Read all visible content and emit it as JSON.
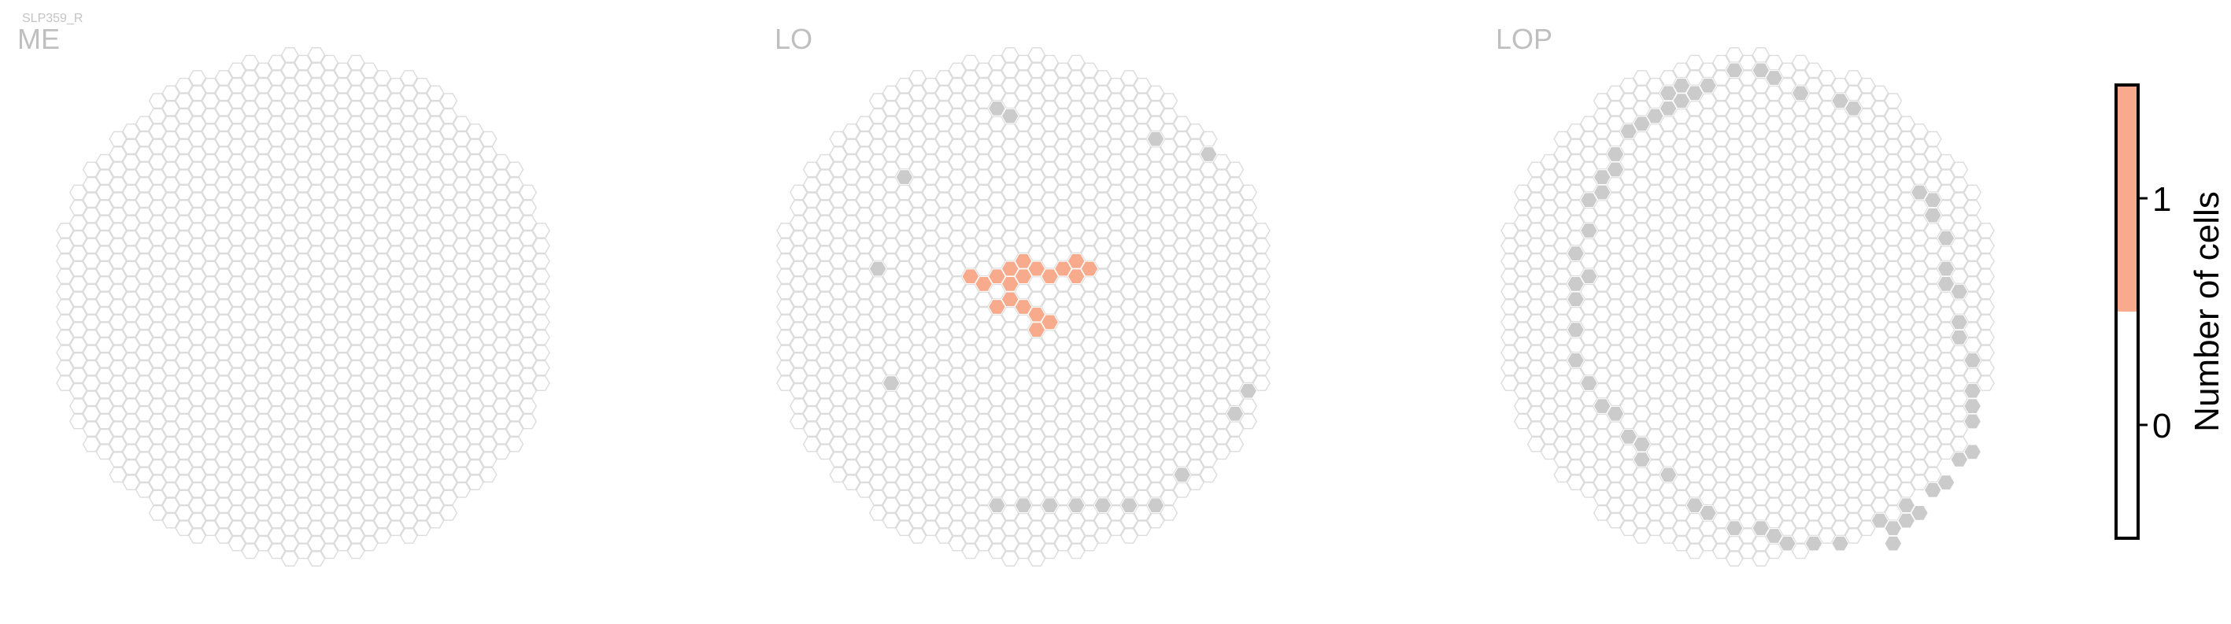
{
  "cell_type": "SLP359_R",
  "colors": {
    "empty_fill": "#ffffff",
    "empty_stroke": "#dcdcdc",
    "boundary_fill": "#cbcbcb",
    "count_1_fill": "#f7ab8c",
    "title_color": "#bfbfbf"
  },
  "chart_data": {
    "type": "heatmap",
    "description_of_grid": "hexagonal column map per neuropil; value = number of cells per hexagon",
    "panels": [
      {
        "title": "ME",
        "filled_hexes": [],
        "boundary_hexes": []
      },
      {
        "title": "LO",
        "filled_hexes": [
          {
            "q": 2,
            "r": -3,
            "value": 1
          },
          {
            "q": 3,
            "r": -4,
            "value": 1
          },
          {
            "q": 4,
            "r": -4,
            "value": 1
          },
          {
            "q": 4,
            "r": -5,
            "value": 1
          },
          {
            "q": 5,
            "r": -5,
            "value": 1
          },
          {
            "q": -4,
            "r": 0,
            "value": 1
          },
          {
            "q": -3,
            "r": 0,
            "value": 1
          },
          {
            "q": -2,
            "r": -1,
            "value": 1
          },
          {
            "q": -1,
            "r": -1,
            "value": 1
          },
          {
            "q": 0,
            "r": -2,
            "value": 1
          },
          {
            "q": 1,
            "r": -3,
            "value": 1
          },
          {
            "q": -1,
            "r": -2,
            "value": 1
          },
          {
            "q": 0,
            "r": -3,
            "value": 1
          },
          {
            "q": -1,
            "r": 0,
            "value": 1
          },
          {
            "q": -2,
            "r": 1,
            "value": 1
          },
          {
            "q": 0,
            "r": 0,
            "value": 1
          },
          {
            "q": 1,
            "r": 0,
            "value": 1
          },
          {
            "q": 2,
            "r": 0,
            "value": 1
          },
          {
            "q": 1,
            "r": 1,
            "value": 1
          }
        ],
        "boundary_hexes": [
          {
            "q": 10,
            "r": -16
          },
          {
            "q": 14,
            "r": -17
          },
          {
            "q": -1,
            "r": -12
          },
          {
            "q": -2,
            "r": -12
          },
          {
            "q": -9,
            "r": -4
          },
          {
            "q": -11,
            "r": 3
          },
          {
            "q": -10,
            "r": 10
          },
          {
            "q": 17,
            "r": -3
          },
          {
            "q": 16,
            "r": -1
          },
          {
            "q": 12,
            "r": 5
          },
          {
            "q": 10,
            "r": 8
          },
          {
            "q": 8,
            "r": 9
          },
          {
            "q": 6,
            "r": 10
          },
          {
            "q": 4,
            "r": 11
          },
          {
            "q": 2,
            "r": 12
          },
          {
            "q": 0,
            "r": 13
          },
          {
            "q": -2,
            "r": 14
          }
        ]
      },
      {
        "title": "LOP",
        "filled_hexes": [],
        "boundary_hexes": [
          {
            "q": 1,
            "r": -16
          },
          {
            "q": 2,
            "r": -16
          },
          {
            "q": 4,
            "r": -16
          },
          {
            "q": 7,
            "r": -17
          },
          {
            "q": 8,
            "r": -17
          },
          {
            "q": -1,
            "r": -15
          },
          {
            "q": -3,
            "r": -13
          },
          {
            "q": -4,
            "r": -12
          },
          {
            "q": -5,
            "r": -11
          },
          {
            "q": -6,
            "r": -10
          },
          {
            "q": -5,
            "r": -12
          },
          {
            "q": -6,
            "r": -11
          },
          {
            "q": -7,
            "r": -9
          },
          {
            "q": -8,
            "r": -8
          },
          {
            "q": -9,
            "r": -7
          },
          {
            "q": -10,
            "r": -5
          },
          {
            "q": -10,
            "r": -4
          },
          {
            "q": -11,
            "r": -3
          },
          {
            "q": -11,
            "r": -2
          },
          {
            "q": -12,
            "r": -1
          },
          {
            "q": -12,
            "r": 1
          },
          {
            "q": -13,
            "r": 3
          },
          {
            "q": -12,
            "r": 4
          },
          {
            "q": -13,
            "r": 5
          },
          {
            "q": -13,
            "r": 6
          },
          {
            "q": -13,
            "r": 8
          },
          {
            "q": -13,
            "r": 10
          },
          {
            "q": -12,
            "r": 11
          },
          {
            "q": -11,
            "r": 12
          },
          {
            "q": -10,
            "r": 12
          },
          {
            "q": -9,
            "r": 13
          },
          {
            "q": -8,
            "r": 13
          },
          {
            "q": -8,
            "r": 14
          },
          {
            "q": -6,
            "r": 14
          },
          {
            "q": -4,
            "r": 15
          },
          {
            "q": -3,
            "r": 15
          },
          {
            "q": -1,
            "r": 15
          },
          {
            "q": 1,
            "r": 14
          },
          {
            "q": 2,
            "r": 14
          },
          {
            "q": 3,
            "r": 14
          },
          {
            "q": 5,
            "r": 13
          },
          {
            "q": 7,
            "r": 12
          },
          {
            "q": 12,
            "r": 8
          },
          {
            "q": 13,
            "r": 7
          },
          {
            "q": 14,
            "r": 5
          },
          {
            "q": 15,
            "r": 4
          },
          {
            "q": 16,
            "r": 2
          },
          {
            "q": 17,
            "r": 1
          },
          {
            "q": 17,
            "r": -1
          },
          {
            "q": 17,
            "r": -2
          },
          {
            "q": 17,
            "r": -3
          },
          {
            "q": 17,
            "r": -5
          },
          {
            "q": 16,
            "r": -6
          },
          {
            "q": 16,
            "r": -7
          },
          {
            "q": 16,
            "r": -9
          },
          {
            "q": 15,
            "r": -10
          },
          {
            "q": 15,
            "r": -12
          },
          {
            "q": 14,
            "r": -13
          },
          {
            "q": 14,
            "r": -14
          },
          {
            "q": 13,
            "r": -14
          },
          {
            "q": 15,
            "r": -9
          },
          {
            "q": 12,
            "r": 7
          },
          {
            "q": 11,
            "r": 9
          },
          {
            "q": 10,
            "r": 9
          },
          {
            "q": 11,
            "r": 10
          }
        ]
      }
    ],
    "colorbar": {
      "label": "Number of cells",
      "ticks": [
        0,
        1
      ],
      "range": [
        -0.5,
        1.5
      ],
      "bins": [
        {
          "from": -0.5,
          "to": 0.5,
          "color": "#ffffff"
        },
        {
          "from": 0.5,
          "to": 1.5,
          "color": "#f7ab8c"
        }
      ]
    }
  }
}
